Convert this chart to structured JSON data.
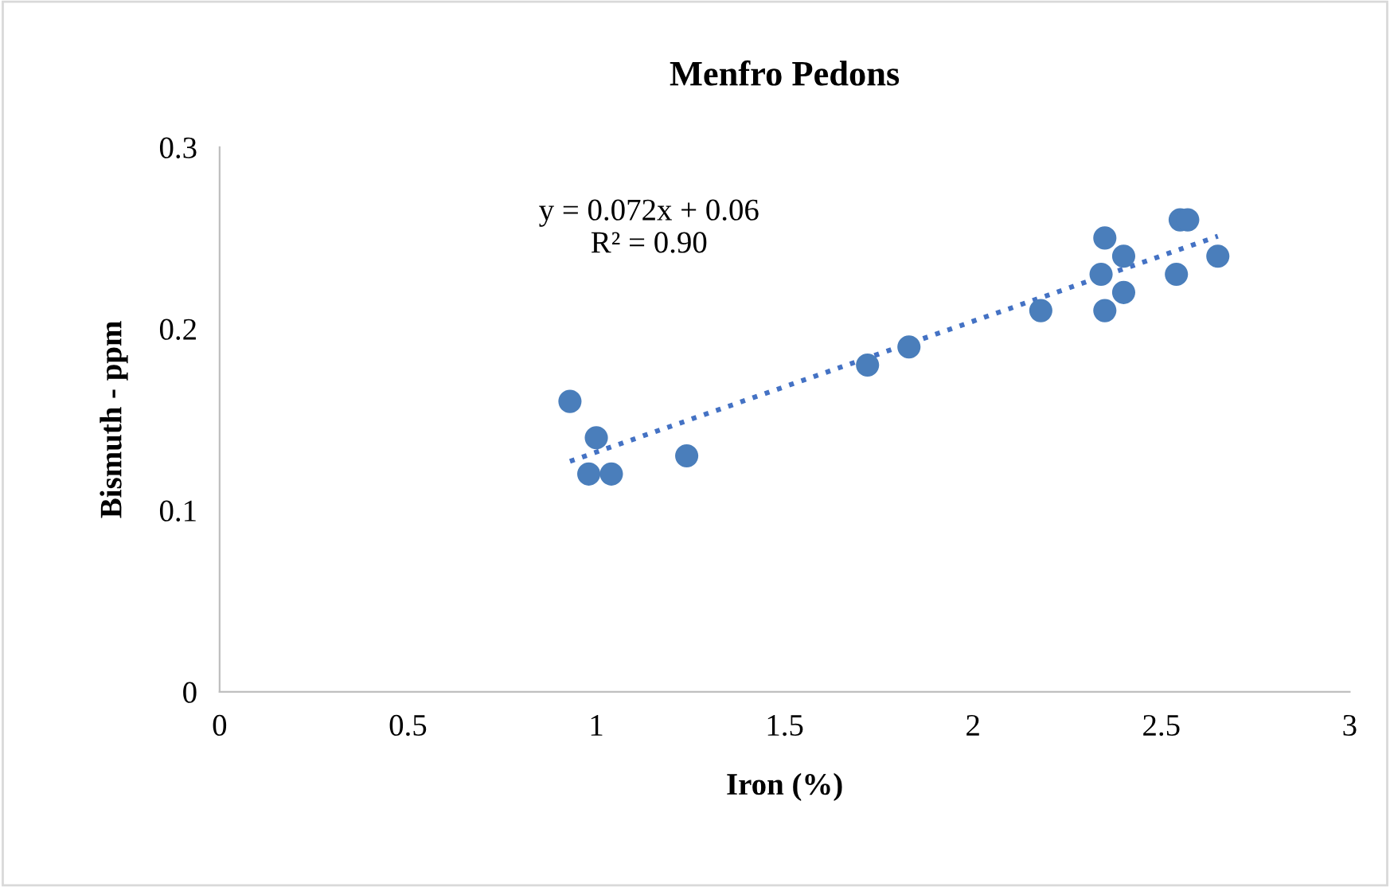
{
  "chart_data": {
    "type": "scatter",
    "title": "Menfro Pedons",
    "xlabel": "Iron (%)",
    "ylabel": "Bismuth - ppm",
    "xlim": [
      0,
      3
    ],
    "xticks": [
      0,
      0.5,
      1,
      1.5,
      2,
      2.5,
      3
    ],
    "ylim": [
      0,
      0.3
    ],
    "yticks": [
      0,
      0.1,
      0.2,
      0.3
    ],
    "grid": false,
    "legend": false,
    "marker": "circle",
    "annotations": [
      "y = 0.072x + 0.06\nR² = 0.90"
    ],
    "series": [
      {
        "color": "#4a7ebb",
        "x": [
          0.93,
          1.0,
          0.98,
          1.04,
          1.24,
          1.72,
          1.83,
          2.18,
          2.35,
          2.34,
          2.35,
          2.4,
          2.4,
          2.54,
          2.55,
          2.57,
          2.65
        ],
        "values": [
          0.16,
          0.14,
          0.12,
          0.12,
          0.13,
          0.18,
          0.19,
          0.21,
          0.25,
          0.23,
          0.21,
          0.24,
          0.22,
          0.23,
          0.26,
          0.26,
          0.24
        ]
      },
      {
        "type": "line",
        "marker": "none",
        "line_style": "dotted",
        "color": "#4472c4",
        "x": [
          0.93,
          2.65
        ],
        "values": [
          0.127,
          0.251
        ]
      }
    ]
  }
}
